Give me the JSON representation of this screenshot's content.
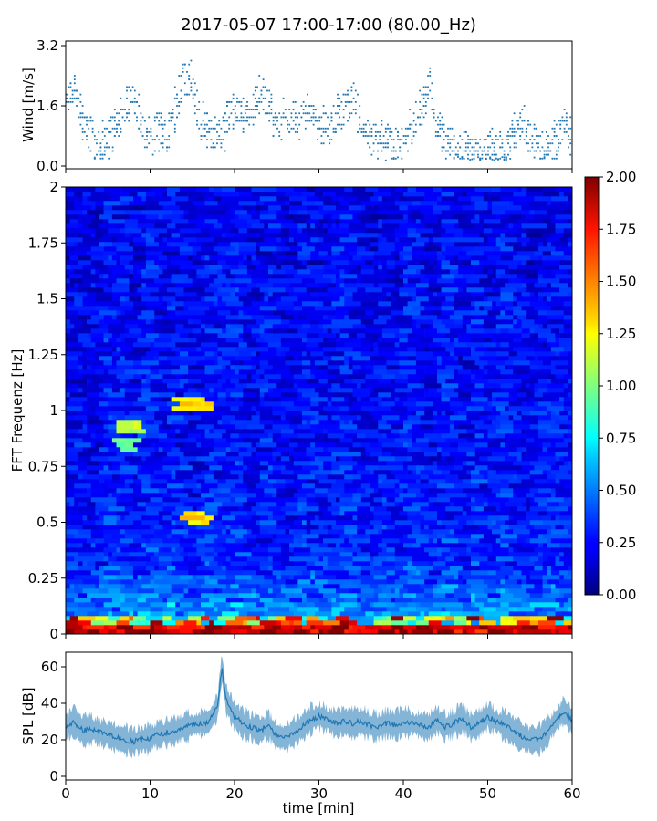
{
  "title": "2017-05-07 17:00-17:00 (80.00_Hz)",
  "chart_data": [
    {
      "type": "scatter",
      "panel": "wind",
      "ylabel": "Wind [m/s]",
      "xlim": [
        0,
        60
      ],
      "ylim": [
        0,
        3.2
      ],
      "ytick_values": [
        0.0,
        1.6,
        3.2
      ],
      "ytick_labels": [
        "0.0",
        "1.6",
        "3.2"
      ],
      "color": "#1f77b4",
      "envelope": {
        "x": [
          0,
          1,
          2,
          3,
          4,
          5,
          6,
          7,
          8,
          9,
          10,
          11,
          12,
          13,
          14,
          15,
          16,
          17,
          18,
          19,
          20,
          21,
          22,
          23,
          24,
          25,
          26,
          27,
          28,
          29,
          30,
          31,
          32,
          33,
          34,
          35,
          36,
          37,
          38,
          39,
          40,
          41,
          42,
          43,
          44,
          45,
          46,
          47,
          48,
          49,
          50,
          51,
          52,
          53,
          54,
          55,
          56,
          57,
          58,
          59,
          60
        ],
        "y": [
          1.4,
          2.2,
          1.2,
          0.7,
          0.6,
          0.7,
          1.1,
          1.5,
          1.9,
          1.0,
          0.9,
          0.9,
          0.8,
          1.5,
          2.4,
          2.2,
          1.2,
          0.9,
          0.8,
          1.1,
          1.6,
          1.3,
          1.6,
          1.9,
          1.7,
          1.1,
          1.3,
          1.3,
          1.3,
          1.3,
          1.2,
          1.0,
          1.2,
          1.6,
          1.8,
          1.2,
          0.8,
          0.7,
          0.7,
          0.6,
          0.6,
          1.0,
          1.5,
          2.2,
          1.1,
          0.6,
          0.5,
          0.5,
          0.4,
          0.3,
          0.5,
          0.4,
          0.3,
          0.9,
          1.2,
          0.8,
          0.5,
          0.4,
          0.7,
          1.1,
          0.9
        ]
      }
    },
    {
      "type": "heatmap",
      "panel": "spectrogram",
      "ylabel": "FFT Frequenz [Hz]",
      "xlim": [
        0,
        60
      ],
      "ylim": [
        0,
        2
      ],
      "ytick_values": [
        0,
        0.25,
        0.5,
        0.75,
        1,
        1.25,
        1.5,
        1.75,
        2
      ],
      "ytick_labels": [
        "0",
        "0.25",
        "0.5",
        "0.75",
        "1",
        "1.25",
        "1.5",
        "1.75",
        "2"
      ],
      "colormap": "jet",
      "colorbar": {
        "vmin": 0.0,
        "vmax": 2.0,
        "tick_values": [
          0.0,
          0.25,
          0.5,
          0.75,
          1.0,
          1.25,
          1.5,
          1.75,
          2.0
        ],
        "tick_labels": [
          "0.00",
          "0.25",
          "0.50",
          "0.75",
          "1.00",
          "1.25",
          "1.50",
          "1.75",
          "2.00"
        ]
      },
      "features": [
        {
          "x": [
            13,
            17
          ],
          "y": 1.03,
          "value": 1.3
        },
        {
          "x": [
            6,
            9
          ],
          "y": 0.93,
          "value": 1.1
        },
        {
          "x": [
            6,
            8
          ],
          "y": 0.85,
          "value": 1.0
        },
        {
          "x": [
            14,
            17
          ],
          "y": 0.52,
          "value": 1.3
        },
        {
          "x": [
            0,
            60
          ],
          "y": [
            0,
            0.03
          ],
          "value": 2.0
        }
      ]
    },
    {
      "type": "line",
      "panel": "spl",
      "ylabel": "SPL [dB]",
      "xlabel": "time [min]",
      "xlim": [
        0,
        60
      ],
      "ylim": [
        -2,
        68
      ],
      "ytick_values": [
        0,
        20,
        40,
        60
      ],
      "ytick_labels": [
        "0",
        "20",
        "40",
        "60"
      ],
      "xtick_values": [
        0,
        10,
        20,
        30,
        40,
        50,
        60
      ],
      "xtick_labels": [
        "0",
        "10",
        "20",
        "30",
        "40",
        "50",
        "60"
      ],
      "color": "#1f77b4",
      "series": [
        {
          "x": [
            0,
            1,
            2,
            3,
            4,
            5,
            6,
            7,
            8,
            9,
            10,
            11,
            12,
            13,
            14,
            15,
            16,
            17,
            18,
            18.5,
            19,
            20,
            21,
            22,
            23,
            24,
            25,
            26,
            27,
            28,
            29,
            30,
            31,
            32,
            33,
            34,
            35,
            36,
            37,
            38,
            39,
            40,
            41,
            42,
            43,
            44,
            45,
            46,
            47,
            48,
            49,
            50,
            51,
            52,
            53,
            54,
            55,
            56,
            57,
            58,
            59,
            60
          ],
          "y": [
            27,
            30,
            25,
            26,
            24,
            23,
            21,
            20,
            19,
            20,
            21,
            23,
            24,
            25,
            27,
            28,
            29,
            30,
            38,
            60,
            42,
            33,
            29,
            27,
            25,
            28,
            22,
            21,
            24,
            27,
            31,
            33,
            31,
            29,
            30,
            29,
            30,
            28,
            27,
            29,
            28,
            30,
            29,
            28,
            27,
            31,
            27,
            29,
            32,
            27,
            29,
            33,
            30,
            28,
            25,
            22,
            20,
            20,
            24,
            30,
            36,
            30
          ]
        }
      ]
    }
  ]
}
